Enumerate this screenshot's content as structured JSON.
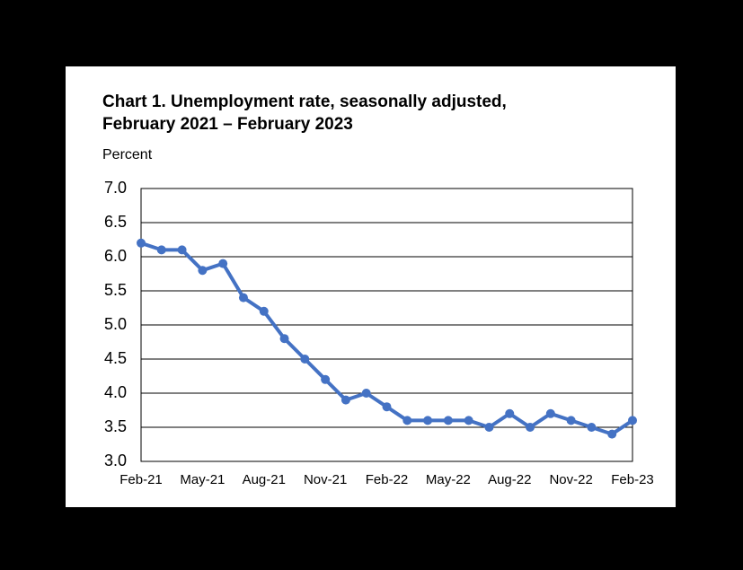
{
  "chart_data": {
    "type": "line",
    "title": [
      "Chart 1. Unemployment rate, seasonally adjusted,",
      "February 2021 – February 2023"
    ],
    "y_axis_label": "Percent",
    "categories": [
      "Feb-21",
      null,
      null,
      "May-21",
      null,
      null,
      "Aug-21",
      null,
      null,
      "Nov-21",
      null,
      null,
      "Feb-22",
      null,
      null,
      "May-22",
      null,
      null,
      "Aug-22",
      null,
      null,
      "Nov-22",
      null,
      null,
      "Feb-23"
    ],
    "series": [
      {
        "name": "Unemployment rate",
        "color": "#4472c4",
        "values": [
          6.2,
          6.1,
          6.1,
          5.8,
          5.9,
          5.4,
          5.2,
          4.8,
          4.5,
          4.2,
          3.9,
          4.0,
          3.8,
          3.6,
          3.6,
          3.6,
          3.6,
          3.5,
          3.7,
          3.5,
          3.7,
          3.6,
          3.5,
          3.4,
          3.6
        ]
      }
    ],
    "ylim": [
      3.0,
      7.0
    ],
    "yticks": [
      {
        "value": 3,
        "label": "3.0"
      },
      3.5,
      {
        "value": 4,
        "label": "4.0"
      },
      4.5,
      {
        "value": 5,
        "label": "5.0"
      },
      5.5,
      {
        "value": 6,
        "label": "6.0"
      },
      6.5,
      {
        "value": 7,
        "label": "7.0"
      }
    ],
    "grid": true
  }
}
